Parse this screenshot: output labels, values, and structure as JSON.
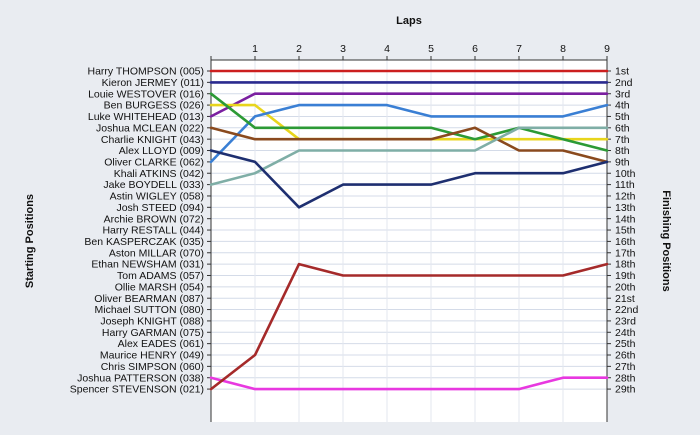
{
  "chart_data": {
    "type": "line",
    "title": "",
    "xlabel": "Laps",
    "ylabel_left": "Starting Positions",
    "ylabel_right": "Finishing Positions",
    "x": [
      0,
      1,
      2,
      3,
      4,
      5,
      6,
      7,
      8,
      9
    ],
    "x_tick_labels": [
      "1",
      "2",
      "3",
      "4",
      "5",
      "6",
      "7",
      "8",
      "9"
    ],
    "position_range": [
      1,
      29
    ],
    "y_reversed": true,
    "grid": true,
    "left_labels": [
      "Harry THOMPSON (005)",
      "Kieron JERMEY (011)",
      "Louie WESTOVER (016)",
      "Ben BURGESS (026)",
      "Luke WHITEHEAD (013)",
      "Joshua MCLEAN (022)",
      "Charlie KNIGHT (043)",
      "Alex LLOYD (009)",
      "Oliver CLARKE (062)",
      "Khali ATKINS (042)",
      "Jake BOYDELL (033)",
      "Astin WIGLEY (058)",
      "Josh STEED (094)",
      "Archie BROWN (072)",
      "Harry RESTALL (044)",
      "Ben KASPERCZAK (035)",
      "Aston MILLAR (070)",
      "Ethan NEWSHAM (031)",
      "Tom ADAMS (057)",
      "Ollie MARSH (054)",
      "Oliver BEARMAN (087)",
      "Michael SUTTON (080)",
      "Joseph KNIGHT (088)",
      "Harry GARMAN (075)",
      "Alex EADES (061)",
      "Maurice HENRY (049)",
      "Chris SIMPSON (060)",
      "Joshua PATTERSON (038)",
      "Spencer STEVENSON (021)"
    ],
    "right_labels": [
      "1st",
      "2nd",
      "3rd",
      "4th",
      "5th",
      "6th",
      "7th",
      "8th",
      "9th",
      "10th",
      "11th",
      "12th",
      "13th",
      "14th",
      "15th",
      "16th",
      "17th",
      "18th",
      "19th",
      "20th",
      "21st",
      "22nd",
      "23rd",
      "24th",
      "25th",
      "26th",
      "27th",
      "28th",
      "29th"
    ],
    "series": [
      {
        "color": "#cc1f1f",
        "values": [
          1,
          1,
          1,
          1,
          1,
          1,
          1,
          1,
          1,
          1
        ]
      },
      {
        "color": "#2a2a8f",
        "values": [
          2,
          2,
          2,
          2,
          2,
          2,
          2,
          2,
          2,
          2
        ]
      },
      {
        "color": "#7a1fa0",
        "values": [
          5,
          3,
          3,
          3,
          3,
          3,
          3,
          3,
          3,
          3
        ]
      },
      {
        "color": "#e8d51c",
        "values": [
          4,
          4,
          7,
          7,
          7,
          7,
          7,
          7,
          7,
          7
        ]
      },
      {
        "color": "#3a7fd4",
        "values": [
          9,
          5,
          4,
          4,
          4,
          5,
          5,
          5,
          5,
          4
        ]
      },
      {
        "color": "#e838e0",
        "values": [
          28,
          29,
          29,
          29,
          29,
          29,
          29,
          29,
          28,
          28
        ]
      },
      {
        "color": "#2c9a35",
        "values": [
          3,
          6,
          6,
          6,
          6,
          6,
          7,
          6,
          7,
          8
        ]
      },
      {
        "color": "#8a4a1e",
        "values": [
          6,
          7,
          7,
          7,
          7,
          7,
          6,
          8,
          8,
          9
        ]
      },
      {
        "color": "#7faea6",
        "values": [
          11,
          10,
          8,
          8,
          8,
          8,
          8,
          6,
          6,
          6
        ]
      },
      {
        "color": "#a52a2a",
        "values": [
          29,
          26,
          18,
          19,
          19,
          19,
          19,
          19,
          19,
          18
        ]
      },
      {
        "color": "#1e2f70",
        "values": [
          8,
          9,
          13,
          11,
          11,
          11,
          10,
          10,
          10,
          9
        ]
      }
    ]
  }
}
